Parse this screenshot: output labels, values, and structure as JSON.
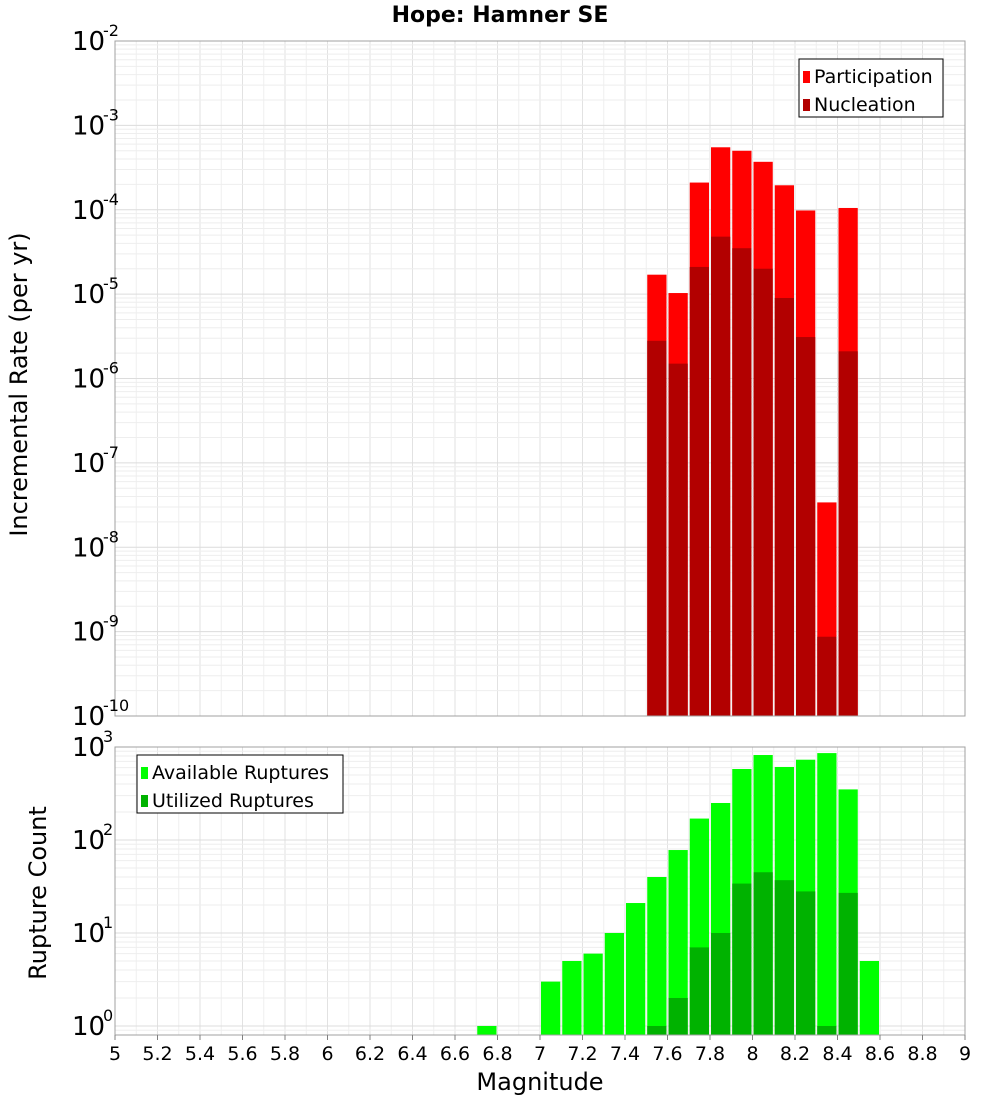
{
  "chart_data": [
    {
      "type": "bar",
      "title": "Hope: Hamner SE",
      "xlabel": "",
      "ylabel": "Incremental Rate (per yr)",
      "yscale": "log",
      "xlim": [
        5,
        9
      ],
      "ylim": [
        1e-10,
        0.01
      ],
      "ytick_labels": [
        {
          "base": "10",
          "exp": "-10"
        },
        {
          "base": "10",
          "exp": "-9"
        },
        {
          "base": "10",
          "exp": "-8"
        },
        {
          "base": "10",
          "exp": "-7"
        },
        {
          "base": "10",
          "exp": "-6"
        },
        {
          "base": "10",
          "exp": "-5"
        },
        {
          "base": "10",
          "exp": "-4"
        },
        {
          "base": "10",
          "exp": "-3"
        },
        {
          "base": "10",
          "exp": "-2"
        }
      ],
      "grid": true,
      "legend_position": "top-right",
      "series": [
        {
          "name": "Participation",
          "color": "#ff0000",
          "x": [
            7.55,
            7.65,
            7.75,
            7.85,
            7.95,
            8.05,
            8.15,
            8.25,
            8.35,
            8.45
          ],
          "values": [
            1.7e-05,
            1.03e-05,
            0.00021,
            0.00055,
            0.0005,
            0.00037,
            0.000195,
            9.8e-05,
            3.4e-08,
            0.000105
          ]
        },
        {
          "name": "Nucleation",
          "color": "#b20000",
          "x": [
            7.55,
            7.65,
            7.75,
            7.85,
            7.95,
            8.05,
            8.15,
            8.25,
            8.35,
            8.45
          ],
          "values": [
            2.8e-06,
            1.5e-06,
            2.1e-05,
            4.8e-05,
            3.5e-05,
            2e-05,
            9e-06,
            3.1e-06,
            8.7e-10,
            2.1e-06
          ]
        }
      ]
    },
    {
      "type": "bar",
      "title": "",
      "xlabel": "Magnitude",
      "ylabel": "Rupture Count",
      "yscale": "log",
      "xlim": [
        5,
        9
      ],
      "ylim": [
        0.8,
        1000
      ],
      "xtick_labels": [
        "5",
        "5.2",
        "5.4",
        "5.6",
        "5.8",
        "6",
        "6.2",
        "6.4",
        "6.6",
        "6.8",
        "7",
        "7.2",
        "7.4",
        "7.6",
        "7.8",
        "8",
        "8.2",
        "8.4",
        "8.6",
        "8.8",
        "9"
      ],
      "ytick_labels": [
        {
          "base": "10",
          "exp": "0"
        },
        {
          "base": "10",
          "exp": "1"
        },
        {
          "base": "10",
          "exp": "2"
        },
        {
          "base": "10",
          "exp": "3"
        }
      ],
      "grid": true,
      "legend_position": "top-left",
      "series": [
        {
          "name": "Available Ruptures",
          "color": "#00ff00",
          "x": [
            6.75,
            7.05,
            7.15,
            7.25,
            7.35,
            7.45,
            7.55,
            7.65,
            7.75,
            7.85,
            7.95,
            8.05,
            8.15,
            8.25,
            8.35,
            8.45,
            8.55
          ],
          "values": [
            1,
            3,
            5,
            6,
            10,
            21,
            40,
            78,
            170,
            250,
            580,
            820,
            610,
            730,
            860,
            350,
            5
          ]
        },
        {
          "name": "Utilized Ruptures",
          "color": "#00b200",
          "x": [
            7.55,
            7.65,
            7.75,
            7.85,
            7.95,
            8.05,
            8.15,
            8.25,
            8.35,
            8.45
          ],
          "values": [
            1,
            2,
            7,
            10,
            34,
            45,
            37,
            28,
            1,
            27
          ]
        }
      ]
    }
  ]
}
